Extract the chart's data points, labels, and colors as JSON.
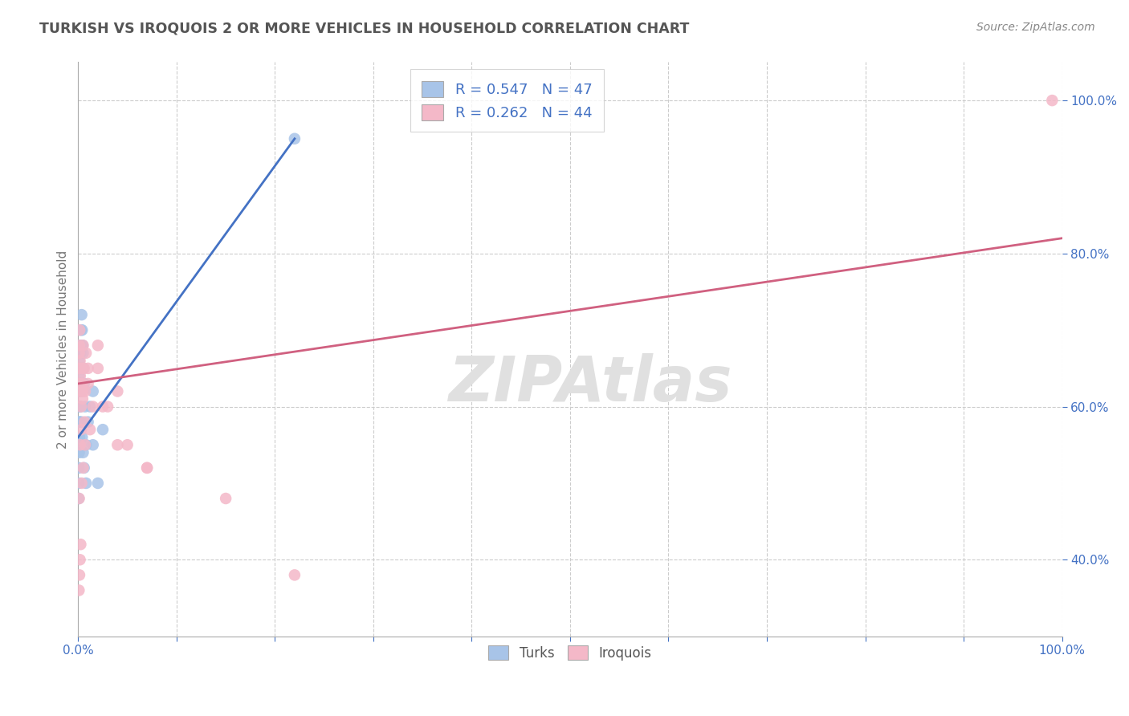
{
  "title": "TURKISH VS IROQUOIS 2 OR MORE VEHICLES IN HOUSEHOLD CORRELATION CHART",
  "source": "Source: ZipAtlas.com",
  "ylabel": "2 or more Vehicles in Household",
  "turks_R": 0.547,
  "turks_N": 47,
  "iroquois_R": 0.262,
  "iroquois_N": 44,
  "legend_labels": [
    "Turks",
    "Iroquois"
  ],
  "turks_color": "#a8c4e8",
  "turks_line_color": "#4472c4",
  "iroquois_color": "#f4b8c8",
  "iroquois_line_color": "#d06080",
  "watermark": "ZIPAtlas",
  "background_color": "#ffffff",
  "grid_color": "#cccccc",
  "text_color": "#4472c4",
  "axis_label_color": "#777777",
  "turks_x": [
    0.05,
    0.05,
    0.05,
    0.07,
    0.08,
    0.1,
    0.1,
    0.1,
    0.12,
    0.15,
    0.15,
    0.18,
    0.2,
    0.2,
    0.22,
    0.25,
    0.28,
    0.3,
    0.3,
    0.35,
    0.4,
    0.45,
    0.5,
    0.5,
    0.6,
    0.7,
    0.8,
    1.0,
    1.2,
    1.5,
    2.0,
    0.05,
    0.06,
    0.08,
    0.1,
    0.13,
    0.16,
    0.2,
    0.25,
    0.3,
    0.4,
    0.5,
    0.6,
    0.8,
    1.5,
    2.5,
    22.0
  ],
  "turks_y": [
    55,
    58,
    60,
    63,
    65,
    62,
    64,
    66,
    67,
    65,
    68,
    63,
    60,
    62,
    65,
    67,
    70,
    65,
    68,
    72,
    70,
    68,
    65,
    67,
    63,
    60,
    55,
    58,
    60,
    62,
    50,
    48,
    50,
    52,
    54,
    56,
    58,
    60,
    62,
    58,
    56,
    54,
    52,
    50,
    55,
    57,
    95
  ],
  "iroquois_x": [
    0.05,
    0.07,
    0.1,
    0.12,
    0.15,
    0.18,
    0.2,
    0.25,
    0.3,
    0.35,
    0.4,
    0.45,
    0.5,
    0.6,
    0.7,
    0.8,
    1.0,
    1.5,
    2.0,
    3.0,
    4.0,
    5.0,
    7.0,
    0.08,
    0.13,
    0.18,
    0.25,
    0.35,
    0.5,
    0.7,
    1.2,
    2.5,
    0.1,
    0.2,
    0.3,
    0.45,
    0.65,
    1.0,
    2.0,
    4.0,
    7.0,
    15.0,
    22.0,
    99.0
  ],
  "iroquois_y": [
    65,
    63,
    67,
    68,
    70,
    66,
    64,
    62,
    60,
    65,
    63,
    61,
    68,
    65,
    62,
    67,
    63,
    60,
    65,
    60,
    62,
    55,
    52,
    36,
    38,
    40,
    42,
    50,
    52,
    55,
    57,
    60,
    48,
    55,
    57,
    62,
    58,
    65,
    68,
    55,
    52,
    48,
    38,
    100
  ],
  "turks_line_x0": 0.0,
  "turks_line_y0": 56.0,
  "turks_line_x1": 22.0,
  "turks_line_y1": 95.0,
  "iroquois_line_x0": 0.0,
  "iroquois_line_y0": 63.0,
  "iroquois_line_x1": 100.0,
  "iroquois_line_y1": 82.0,
  "xmin": 0.0,
  "xmax": 100.0,
  "ymin": 30.0,
  "ymax": 105.0,
  "y_ticks": [
    40.0,
    60.0,
    80.0,
    100.0
  ]
}
